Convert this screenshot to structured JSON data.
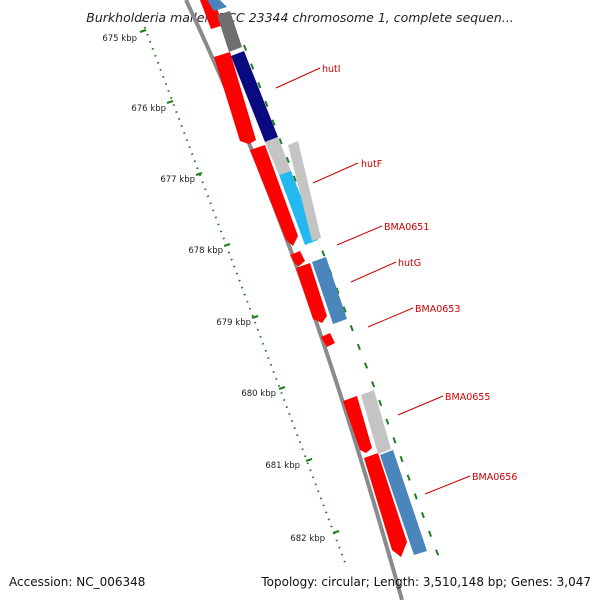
{
  "title": "Burkholderia mallei ATCC 23344 chromosome 1, complete sequen...",
  "footer": {
    "accession": "Accession: NC_006348",
    "topology": "Topology: circular; Length: 3,510,148 bp; Genes: 3,047"
  },
  "ruler_labels": [
    "675 kbp",
    "676 kbp",
    "677 kbp",
    "678 kbp",
    "679 kbp",
    "680 kbp",
    "681 kbp",
    "682 kbp"
  ],
  "gene_labels": [
    "hutI",
    "hutF",
    "BMA0651",
    "hutG",
    "BMA0653",
    "BMA0655",
    "BMA0656"
  ],
  "colors": {
    "backbone": "#8a8a8a",
    "cds": "#ff0000",
    "navy": "#0a0a80",
    "cyan": "#22b8f0",
    "steel_blue": "#4a86bb",
    "light_gray": "#c4c4c4",
    "dark_gray": "#6f6f6f",
    "ruler_tick": "#1f7f1f",
    "label_red": "#cc0000"
  }
}
